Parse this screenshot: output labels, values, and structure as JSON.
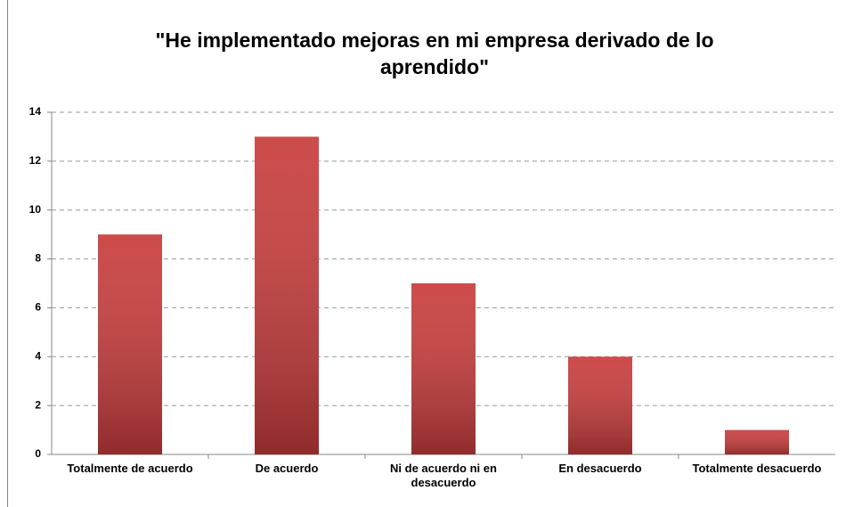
{
  "chart_data": {
    "type": "bar",
    "title": "\"He implementado mejoras en mi empresa derivado de lo aprendido\"",
    "categories": [
      "Totalmente de acuerdo",
      "De acuerdo",
      "Ni de acuerdo ni en desacuerdo",
      "En desacuerdo",
      "Totalmente desacuerdo"
    ],
    "values": [
      9,
      13,
      7,
      4,
      1
    ],
    "color": "#c83c3c",
    "ylim": [
      0,
      14
    ],
    "yticks": [
      0,
      2,
      4,
      6,
      8,
      10,
      12,
      14
    ],
    "grid": true
  }
}
